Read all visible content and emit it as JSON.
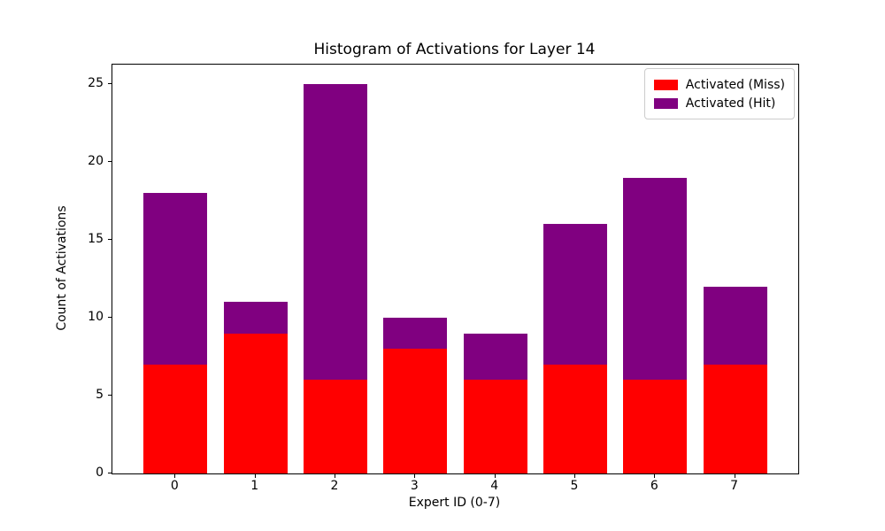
{
  "chart_data": {
    "type": "bar",
    "stacked": true,
    "title": "Histogram of Activations for Layer 14",
    "xlabel": "Expert ID (0-7)",
    "ylabel": "Count of Activations",
    "categories": [
      "0",
      "1",
      "2",
      "3",
      "4",
      "5",
      "6",
      "7"
    ],
    "series": [
      {
        "name": "Activated (Miss)",
        "color": "#ff0000",
        "values": [
          7,
          9,
          6,
          8,
          6,
          7,
          6,
          7
        ]
      },
      {
        "name": "Activated (Hit)",
        "color": "#800080",
        "values": [
          11,
          2,
          19,
          2,
          3,
          9,
          13,
          5
        ]
      }
    ],
    "totals": [
      18,
      11,
      25,
      10,
      9,
      16,
      19,
      12
    ],
    "ylim": [
      0,
      26.25
    ],
    "xlim": [
      -0.79,
      7.79
    ],
    "bar_width": 0.8,
    "yticks": [
      0,
      5,
      10,
      15,
      20,
      25
    ],
    "grid": false,
    "legend_position": "upper right",
    "colors": {
      "miss": "#ff0000",
      "hit": "#800080",
      "spine": "#000000",
      "legend_border": "#cccccc"
    }
  }
}
